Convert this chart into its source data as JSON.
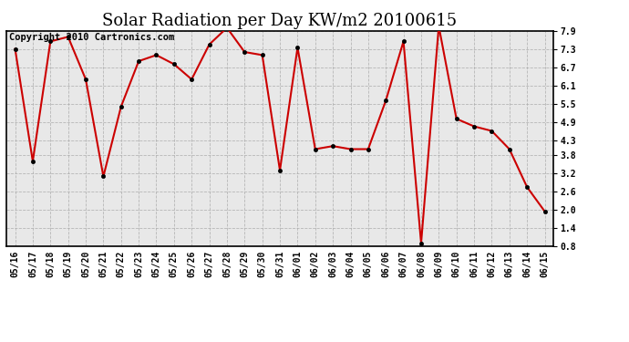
{
  "title": "Solar Radiation per Day KW/m2 20100615",
  "copyright_text": "Copyright 2010 Cartronics.com",
  "labels": [
    "05/16",
    "05/17",
    "05/18",
    "05/19",
    "05/20",
    "05/21",
    "05/22",
    "05/23",
    "05/24",
    "05/25",
    "05/26",
    "05/27",
    "05/28",
    "05/29",
    "05/30",
    "05/31",
    "06/01",
    "06/02",
    "06/03",
    "06/04",
    "06/05",
    "06/06",
    "06/07",
    "06/08",
    "06/09",
    "06/10",
    "06/11",
    "06/12",
    "06/13",
    "06/14",
    "06/15"
  ],
  "values": [
    7.3,
    3.6,
    7.55,
    7.7,
    6.3,
    3.1,
    5.4,
    6.9,
    7.1,
    6.8,
    6.3,
    7.45,
    8.0,
    7.2,
    7.1,
    3.3,
    7.35,
    4.0,
    4.1,
    4.0,
    4.0,
    5.6,
    7.55,
    0.9,
    8.05,
    5.0,
    4.75,
    4.6,
    4.0,
    2.75,
    1.95
  ],
  "ylim_min": 0.8,
  "ylim_max": 7.9,
  "yticks": [
    7.9,
    7.3,
    6.7,
    6.1,
    5.5,
    4.9,
    4.3,
    3.8,
    3.2,
    2.6,
    2.0,
    1.4,
    0.8
  ],
  "line_color": "#cc0000",
  "marker_facecolor": "#000000",
  "marker_edgecolor": "#000000",
  "bg_color": "#ffffff",
  "plot_bg_color": "#e8e8e8",
  "grid_color": "#aaaaaa",
  "title_fontsize": 13,
  "copyright_fontsize": 7.5,
  "tick_fontsize": 7,
  "marker_size": 3,
  "line_width": 1.5
}
